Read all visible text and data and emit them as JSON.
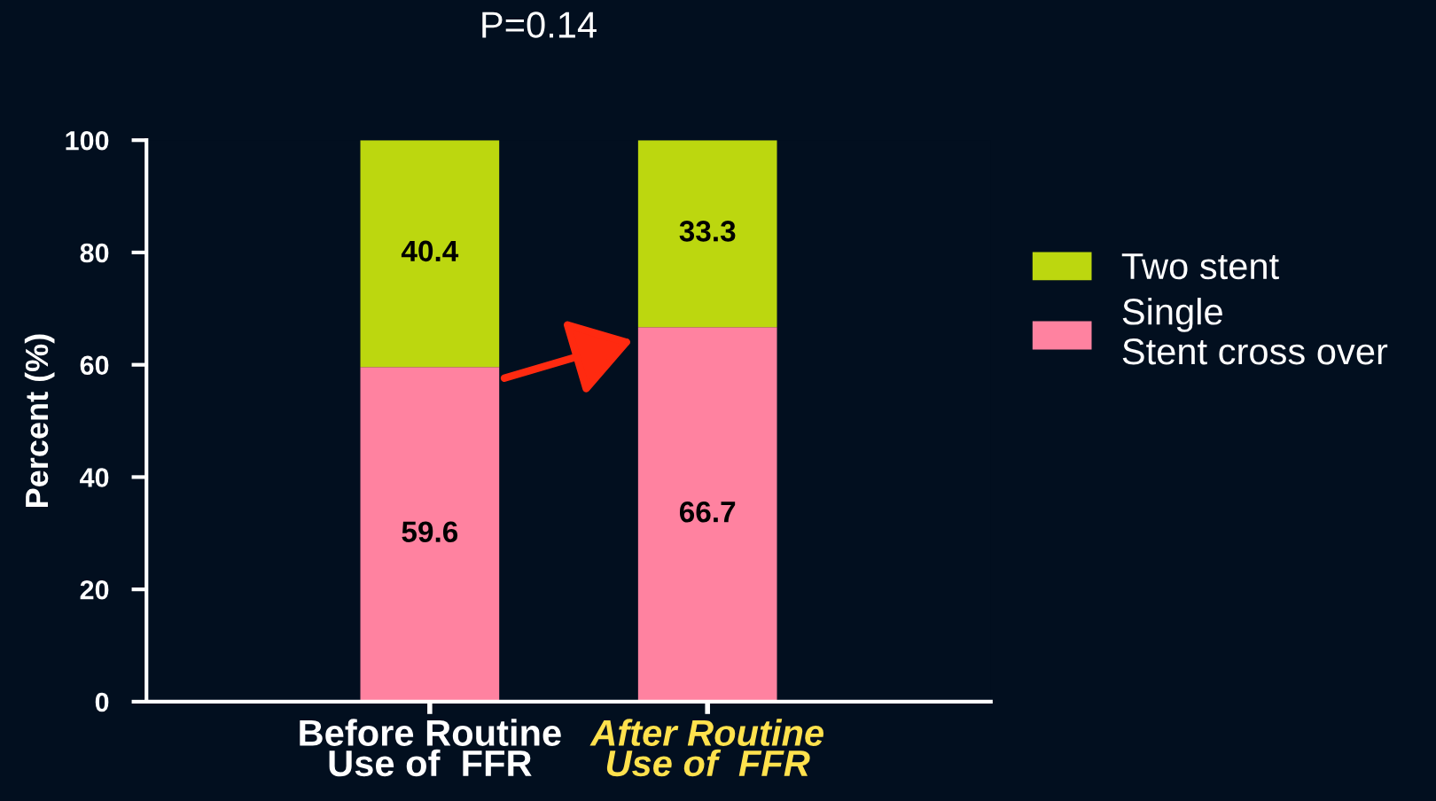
{
  "chart_data": {
    "type": "bar",
    "stacked": true,
    "title": "P=0.14",
    "ylabel": "Percent (%)",
    "categories": [
      "Before Routine\nUse of  FFR",
      "After Routine\nUse of  FFR"
    ],
    "series": [
      {
        "name": "Single\nStent cross over",
        "color": "#ff82a0",
        "values": [
          59.6,
          66.7
        ]
      },
      {
        "name": "Two stent",
        "color": "#bcd70f",
        "values": [
          40.4,
          33.3
        ]
      }
    ],
    "ylim": [
      0,
      100
    ],
    "yticks": [
      0,
      20,
      40,
      60,
      80,
      100
    ],
    "data_labels": true,
    "legend": "right",
    "grid": false
  }
}
